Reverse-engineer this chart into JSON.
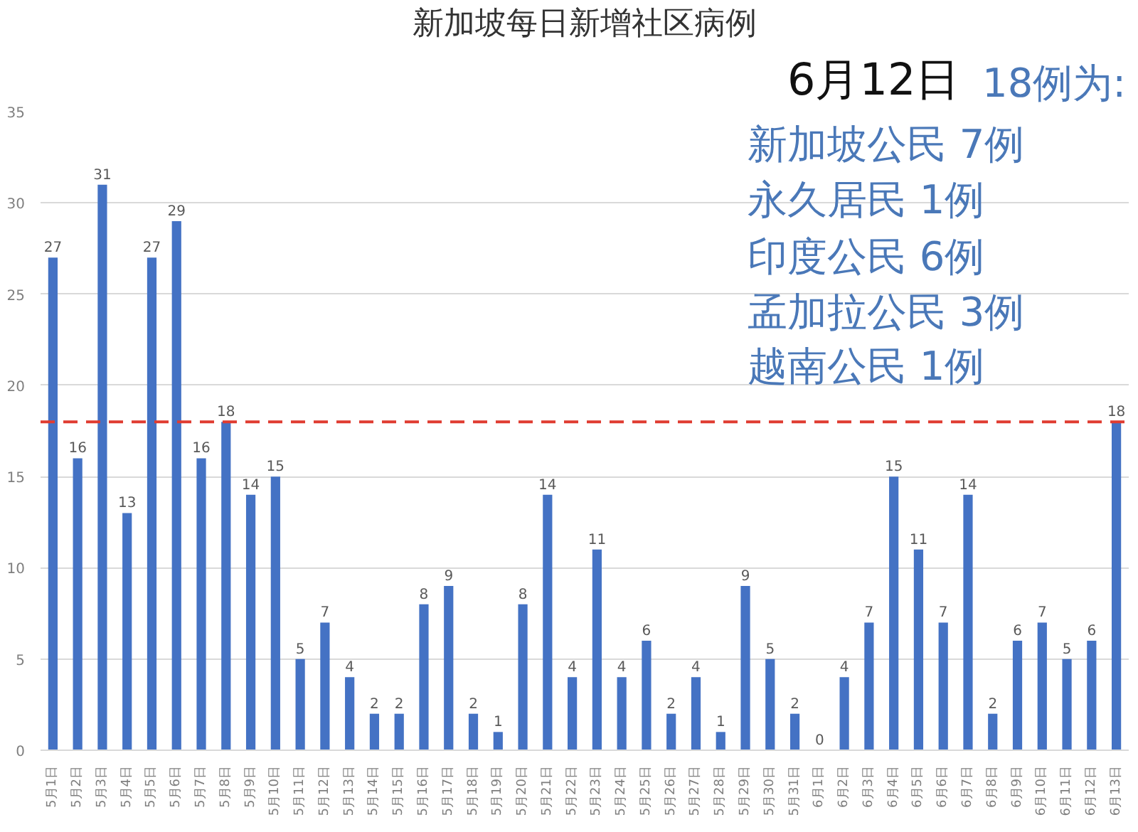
{
  "chart_data": {
    "type": "bar",
    "title": "新加坡每日新增社区病例",
    "categories": [
      "5月1日",
      "5月2日",
      "5月3日",
      "5月4日",
      "5月5日",
      "5月6日",
      "5月7日",
      "5月8日",
      "5月9日",
      "5月10日",
      "5月11日",
      "5月12日",
      "5月13日",
      "5月14日",
      "5月15日",
      "5月16日",
      "5月17日",
      "5月18日",
      "5月19日",
      "5月20日",
      "5月21日",
      "5月22日",
      "5月23日",
      "5月24日",
      "5月25日",
      "5月26日",
      "5月27日",
      "5月28日",
      "5月29日",
      "5月30日",
      "5月31日",
      "6月1日",
      "6月2日",
      "6月3日",
      "6月4日",
      "6月5日",
      "6月6日",
      "6月7日",
      "6月8日",
      "6月9日",
      "6月10日",
      "6月11日",
      "6月12日",
      "6月13日"
    ],
    "values": [
      27,
      16,
      31,
      13,
      27,
      29,
      16,
      18,
      14,
      15,
      5,
      7,
      4,
      2,
      2,
      8,
      9,
      2,
      1,
      8,
      14,
      4,
      11,
      4,
      6,
      2,
      4,
      1,
      9,
      5,
      2,
      0,
      4,
      7,
      15,
      11,
      7,
      14,
      2,
      6,
      7,
      5,
      6,
      18
    ],
    "color": "#4472c4",
    "ylim": [
      0,
      35
    ],
    "yticks": [
      0,
      5,
      10,
      15,
      20,
      25,
      30,
      35
    ],
    "grid": "y",
    "data_labels": true,
    "ref_lines": [
      {
        "axis": "y",
        "value": 18,
        "color": "#e03c31",
        "line_style": "dashed"
      }
    ],
    "annotations": [
      "6月12日",
      "18例为:",
      "新加坡公民 7例",
      "永久居民 1例",
      "印度公民 6例",
      "孟加拉公民 3例",
      "越南公民 1例"
    ]
  }
}
